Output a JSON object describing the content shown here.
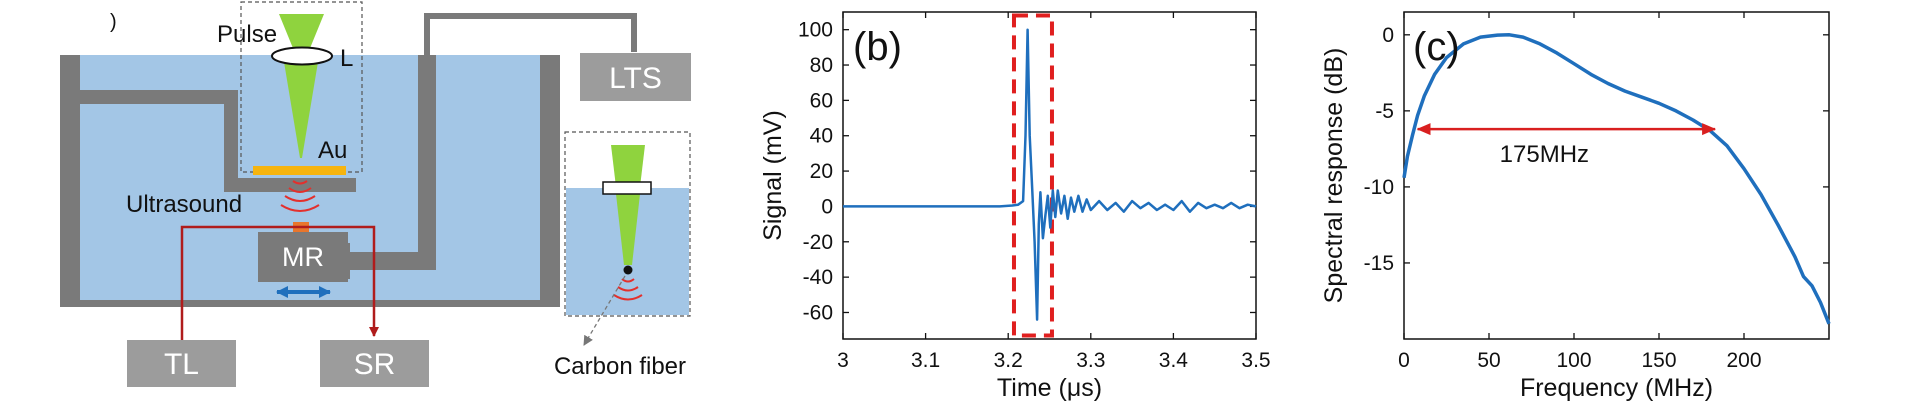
{
  "schematic": {
    "labels": {
      "pulse": "Pulse",
      "lens": "L",
      "gold": "Au",
      "ultrasound": "Ultrasound",
      "resonator": "MR",
      "lts": "LTS",
      "tl": "TL",
      "sr": "SR",
      "fiber": "Carbon fiber",
      "corner_mark": ")"
    },
    "colors": {
      "water": "#a3c6e6",
      "wall": "#7a7a7a",
      "beam": "#8fd33e",
      "gold": "#f6b40f",
      "red_line": "#b01c1c",
      "wave": "#e3302d",
      "arrow": "#1f6fbd",
      "box": "#9c9c9c"
    }
  },
  "chart_data": [
    {
      "type": "line",
      "panel": "(b)",
      "xlabel": "Time (μs)",
      "ylabel": "Signal (mV)",
      "xlim": [
        3,
        3.5
      ],
      "ylim": [
        -75,
        110
      ],
      "xticks": [
        3,
        3.1,
        3.2,
        3.3,
        3.4,
        3.5
      ],
      "yticks": [
        -60,
        -40,
        -20,
        0,
        20,
        40,
        60,
        80,
        100
      ],
      "highlight_box": {
        "x": [
          3.207,
          3.253
        ],
        "y": [
          -73,
          108
        ]
      },
      "series": [
        {
          "name": "signal",
          "color": "#1f6fbd",
          "x": [
            3.0,
            3.05,
            3.1,
            3.15,
            3.19,
            3.205,
            3.212,
            3.218,
            3.221,
            3.2235,
            3.226,
            3.229,
            3.232,
            3.235,
            3.237,
            3.239,
            3.242,
            3.245,
            3.248,
            3.251,
            3.254,
            3.257,
            3.26,
            3.264,
            3.268,
            3.272,
            3.276,
            3.28,
            3.285,
            3.29,
            3.295,
            3.3,
            3.31,
            3.32,
            3.33,
            3.34,
            3.35,
            3.36,
            3.37,
            3.38,
            3.39,
            3.4,
            3.41,
            3.42,
            3.43,
            3.44,
            3.45,
            3.46,
            3.47,
            3.48,
            3.49,
            3.5
          ],
          "y": [
            0,
            0,
            0,
            0,
            0,
            0.5,
            1,
            3,
            40,
            100,
            40,
            10,
            -20,
            -64,
            -10,
            8,
            -18,
            -5,
            6,
            -12,
            9,
            -6,
            9,
            -4,
            6,
            -7,
            5,
            -3,
            6,
            -3,
            4,
            -2,
            3,
            -2,
            2,
            -3,
            3,
            -1,
            2,
            -2,
            1,
            -2,
            3,
            -3,
            2,
            -1,
            1,
            -1,
            2,
            -1,
            1,
            0
          ]
        }
      ]
    },
    {
      "type": "line",
      "panel": "(c)",
      "xlabel": "Frequency (MHz)",
      "ylabel": "Spectral response (dB)",
      "xlim": [
        0,
        250
      ],
      "ylim": [
        -20,
        1.5
      ],
      "xticks": [
        0,
        50,
        100,
        150,
        200
      ],
      "yticks": [
        -15,
        -10,
        -5,
        0
      ],
      "annotation": {
        "text": "175MHz",
        "x_from": 8,
        "x_to": 183,
        "y": -6.2
      },
      "series": [
        {
          "name": "spectral response",
          "color": "#1f6fbd",
          "x": [
            0,
            2,
            5,
            8,
            12,
            18,
            25,
            35,
            45,
            55,
            62,
            70,
            80,
            90,
            100,
            110,
            120,
            130,
            140,
            150,
            160,
            170,
            180,
            190,
            200,
            210,
            220,
            230,
            235,
            240,
            245,
            250
          ],
          "y": [
            -9.4,
            -8.0,
            -6.6,
            -5.3,
            -4.0,
            -2.6,
            -1.5,
            -0.6,
            -0.15,
            -0.02,
            0,
            -0.15,
            -0.6,
            -1.2,
            -1.9,
            -2.6,
            -3.2,
            -3.7,
            -4.1,
            -4.5,
            -5.0,
            -5.6,
            -6.3,
            -7.3,
            -8.8,
            -10.5,
            -12.5,
            -14.6,
            -15.9,
            -16.5,
            -17.6,
            -19.0
          ]
        }
      ]
    }
  ]
}
